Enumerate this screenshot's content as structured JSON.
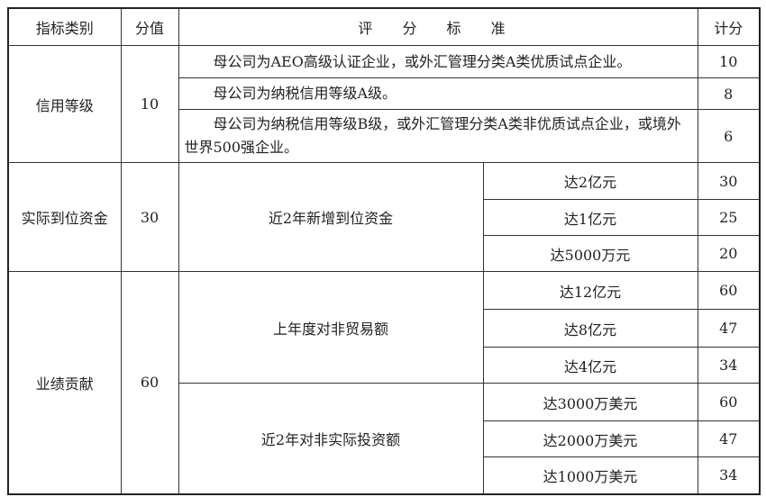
{
  "header": {
    "category": "指标类别",
    "score": "分值",
    "criteria": "评 分 标 准",
    "points": "计分"
  },
  "credit": {
    "category": "信用等级",
    "score": "10",
    "rows": [
      {
        "text": "母公司为AEO高级认证企业，或外汇管理分类A类优质试点企业。",
        "points": "10"
      },
      {
        "text": "母公司为纳税信用等级A级。",
        "points": "8"
      },
      {
        "text": "母公司为纳税信用等级B级，或外汇管理分类A类非优质试点企业，或境外世界500强企业。",
        "points": "6"
      }
    ]
  },
  "capital": {
    "category": "实际到位资金",
    "score": "30",
    "criterion": "近2年新增到位资金",
    "rows": [
      {
        "level": "达2亿元",
        "points": "30"
      },
      {
        "level": "达1亿元",
        "points": "25"
      },
      {
        "level": "达5000万元",
        "points": "20"
      }
    ]
  },
  "performance": {
    "category": "业绩贡献",
    "score": "60",
    "groups": [
      {
        "criterion": "上年度对非贸易额",
        "rows": [
          {
            "level": "达12亿元",
            "points": "60"
          },
          {
            "level": "达8亿元",
            "points": "47"
          },
          {
            "level": "达4亿元",
            "points": "34"
          }
        ]
      },
      {
        "criterion": "近2年对非实际投资额",
        "rows": [
          {
            "level": "达3000万美元",
            "points": "60"
          },
          {
            "level": "达2000万美元",
            "points": "47"
          },
          {
            "level": "达1000万美元",
            "points": "34"
          }
        ]
      }
    ]
  }
}
